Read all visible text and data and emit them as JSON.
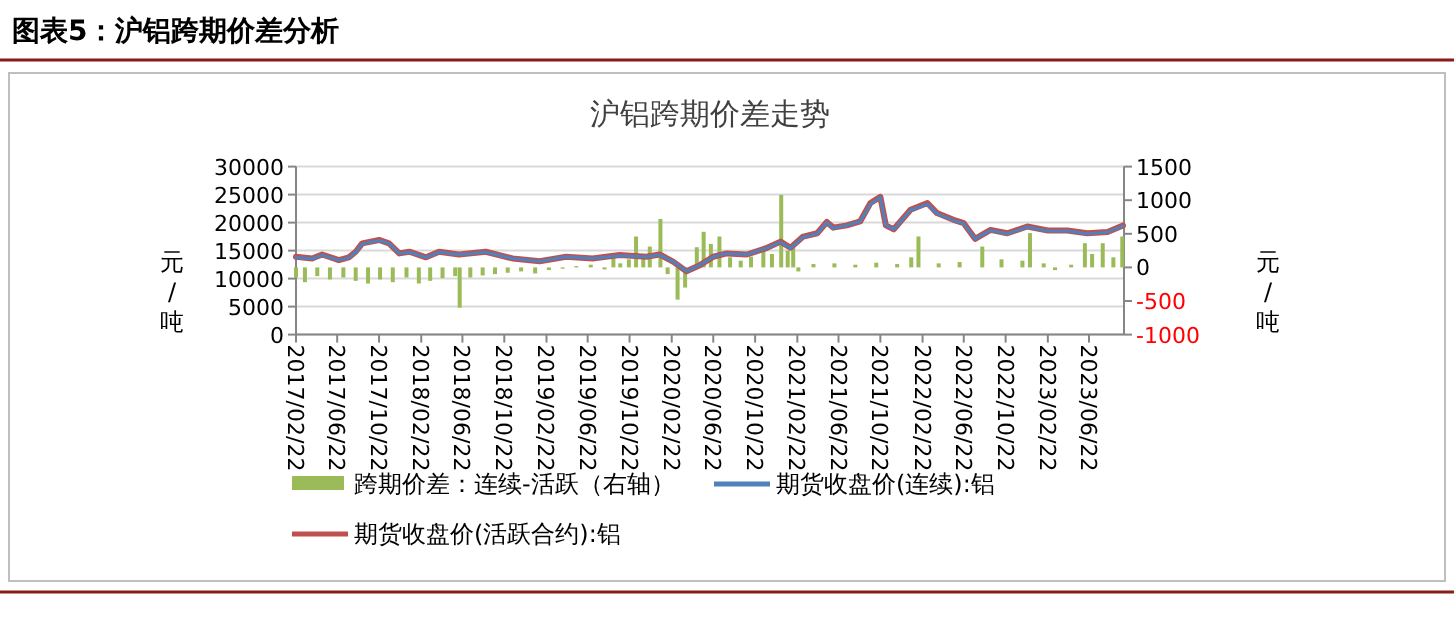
{
  "chart_data": {
    "type": "line",
    "title": "沪铝跨期价差走势",
    "annotations": [
      "图表5：沪铝跨期价差分析"
    ],
    "ylabel": "元/吨",
    "y2label": "元/吨",
    "xlim": [
      "2017-02-22",
      "2023-10-02"
    ],
    "xticks": [
      {
        "value": "2017-02-22",
        "label": "2017/02/22"
      },
      {
        "value": "2017-06-22",
        "label": "2017/06/22"
      },
      {
        "value": "2017-10-22",
        "label": "2017/10/22"
      },
      {
        "value": "2018-02-22",
        "label": "2018/02/22"
      },
      {
        "value": "2018-06-22",
        "label": "2018/06/22"
      },
      {
        "value": "2018-10-22",
        "label": "2018/10/22"
      },
      {
        "value": "2019-02-22",
        "label": "2019/02/22"
      },
      {
        "value": "2019-06-22",
        "label": "2019/06/22"
      },
      {
        "value": "2019-10-22",
        "label": "2019/10/22"
      },
      {
        "value": "2020-02-22",
        "label": "2020/02/22"
      },
      {
        "value": "2020-06-22",
        "label": "2020/06/22"
      },
      {
        "value": "2020-10-22",
        "label": "2020/10/22"
      },
      {
        "value": "2021-02-22",
        "label": "2021/02/22"
      },
      {
        "value": "2021-06-22",
        "label": "2021/06/22"
      },
      {
        "value": "2021-10-22",
        "label": "2021/10/22"
      },
      {
        "value": "2022-02-22",
        "label": "2022/02/22"
      },
      {
        "value": "2022-06-22",
        "label": "2022/06/22"
      },
      {
        "value": "2022-10-22",
        "label": "2022/10/22"
      },
      {
        "value": "2023-02-22",
        "label": "2023/02/22"
      },
      {
        "value": "2023-06-22",
        "label": "2023/06/22"
      }
    ],
    "ylim": [
      0,
      30000
    ],
    "yticks": [
      0,
      5000,
      10000,
      15000,
      20000,
      25000,
      30000
    ],
    "y2lim": [
      -1000,
      1500
    ],
    "y2ticks": [
      -1000,
      -500,
      0,
      500,
      1000,
      1500
    ],
    "grid": "y",
    "legend": "bottom",
    "series": [
      {
        "name": "跨期价差：连续-活跃（右轴）",
        "type": "bar",
        "axis": "y2",
        "color": "#9bbb59",
        "x": [
          "2017-02-22",
          "2017-03-20",
          "2017-04-25",
          "2017-06-01",
          "2017-07-10",
          "2017-08-15",
          "2017-09-20",
          "2017-10-25",
          "2017-12-01",
          "2018-01-10",
          "2018-02-15",
          "2018-03-20",
          "2018-04-25",
          "2018-06-01",
          "2018-06-14",
          "2018-07-15",
          "2018-08-20",
          "2018-09-25",
          "2018-11-01",
          "2018-12-10",
          "2019-01-20",
          "2019-03-01",
          "2019-04-10",
          "2019-05-20",
          "2019-07-01",
          "2019-08-10",
          "2019-09-05",
          "2019-09-25",
          "2019-10-20",
          "2019-11-10",
          "2019-12-01",
          "2019-12-20",
          "2020-01-20",
          "2020-02-10",
          "2020-03-10",
          "2020-04-01",
          "2020-05-05",
          "2020-05-25",
          "2020-06-15",
          "2020-07-10",
          "2020-08-10",
          "2020-09-10",
          "2020-10-10",
          "2020-11-15",
          "2020-12-10",
          "2021-01-06",
          "2021-01-25",
          "2021-02-10",
          "2021-02-25",
          "2021-04-10",
          "2021-06-10",
          "2021-08-10",
          "2021-10-10",
          "2021-12-10",
          "2022-01-20",
          "2022-02-10",
          "2022-04-10",
          "2022-06-10",
          "2022-08-15",
          "2022-10-10",
          "2022-12-10",
          "2023-01-01",
          "2023-02-10",
          "2023-03-15",
          "2023-05-01",
          "2023-06-10",
          "2023-07-01",
          "2023-08-01",
          "2023-09-01",
          "2023-09-27"
        ],
        "values": [
          -150,
          -220,
          -130,
          -180,
          -150,
          -200,
          -240,
          -180,
          -220,
          -150,
          -240,
          -200,
          -160,
          -130,
          -600,
          -150,
          -120,
          -100,
          -80,
          -60,
          -90,
          -40,
          -20,
          20,
          40,
          -30,
          150,
          60,
          120,
          460,
          200,
          310,
          720,
          -100,
          -480,
          -300,
          300,
          530,
          350,
          460,
          150,
          100,
          160,
          250,
          200,
          1080,
          250,
          300,
          -60,
          50,
          60,
          40,
          70,
          50,
          150,
          460,
          60,
          80,
          310,
          120,
          100,
          510,
          60,
          -40,
          40,
          360,
          200,
          360,
          150,
          460
        ]
      },
      {
        "name": "期货收盘价(连续):铝",
        "color": "#4f81bd",
        "x": [
          "2017-02-22",
          "2017-04-10",
          "2017-05-09",
          "2017-06-27",
          "2017-07-26",
          "2017-08-15",
          "2017-09-03",
          "2017-10-22",
          "2017-11-20",
          "2017-12-20",
          "2018-01-18",
          "2018-03-08",
          "2018-04-15",
          "2018-06-12",
          "2018-08-29",
          "2018-11-15",
          "2019-02-02",
          "2019-04-20",
          "2019-07-06",
          "2019-09-23",
          "2019-12-10",
          "2020-01-18",
          "2020-02-27",
          "2020-04-05",
          "2020-05-14",
          "2020-06-22",
          "2020-07-31",
          "2020-09-28",
          "2020-11-26",
          "2021-01-04",
          "2021-02-02",
          "2021-03-11",
          "2021-04-21",
          "2021-05-19",
          "2021-06-07",
          "2021-07-16",
          "2021-08-24",
          "2021-09-23",
          "2021-10-22",
          "2021-11-07",
          "2021-11-30",
          "2022-01-18",
          "2022-03-08",
          "2022-04-05",
          "2022-05-23",
          "2022-06-22",
          "2022-07-25",
          "2022-09-08",
          "2022-10-27",
          "2022-12-24",
          "2023-02-22",
          "2023-04-20",
          "2023-06-17",
          "2023-08-15",
          "2023-09-29"
        ],
        "values": [
          13800,
          13500,
          14200,
          13300,
          13700,
          14700,
          16200,
          16800,
          16300,
          14500,
          14700,
          13800,
          14700,
          14300,
          14700,
          13600,
          13100,
          13900,
          13600,
          14100,
          13900,
          14200,
          13000,
          11300,
          12400,
          13900,
          14500,
          14300,
          15500,
          16500,
          15400,
          17400,
          18000,
          20000,
          19000,
          19500,
          20200,
          23300,
          24500,
          19500,
          18800,
          22200,
          23300,
          21600,
          20400,
          19800,
          17100,
          18600,
          18000,
          19200,
          18500,
          18500,
          18000,
          18300,
          19400
        ]
      },
      {
        "name": "期货收盘价(活跃合约):铝",
        "color": "#c0504d",
        "x": [
          "2017-02-22",
          "2017-04-10",
          "2017-05-09",
          "2017-06-27",
          "2017-07-26",
          "2017-08-15",
          "2017-09-03",
          "2017-10-22",
          "2017-11-20",
          "2017-12-20",
          "2018-01-18",
          "2018-03-08",
          "2018-04-15",
          "2018-06-12",
          "2018-08-29",
          "2018-11-15",
          "2019-02-02",
          "2019-04-20",
          "2019-07-06",
          "2019-09-23",
          "2019-12-10",
          "2020-01-18",
          "2020-02-27",
          "2020-04-05",
          "2020-05-14",
          "2020-06-22",
          "2020-07-31",
          "2020-09-28",
          "2020-11-26",
          "2021-01-04",
          "2021-02-02",
          "2021-03-11",
          "2021-04-21",
          "2021-05-19",
          "2021-06-07",
          "2021-07-16",
          "2021-08-24",
          "2021-09-23",
          "2021-10-22",
          "2021-11-07",
          "2021-11-30",
          "2022-01-18",
          "2022-03-08",
          "2022-04-05",
          "2022-05-23",
          "2022-06-22",
          "2022-07-25",
          "2022-09-08",
          "2022-10-27",
          "2022-12-24",
          "2023-02-22",
          "2023-04-20",
          "2023-06-17",
          "2023-08-15",
          "2023-09-29"
        ],
        "values": [
          13900,
          13600,
          14300,
          13300,
          13800,
          14800,
          16300,
          16900,
          16300,
          14500,
          14800,
          13800,
          14800,
          14300,
          14800,
          13600,
          13100,
          13900,
          13600,
          14200,
          13900,
          14300,
          13000,
          11300,
          12400,
          13900,
          14500,
          14300,
          15500,
          16600,
          15500,
          17500,
          18100,
          20100,
          19100,
          19500,
          20200,
          23500,
          24600,
          19500,
          18800,
          22300,
          23500,
          21700,
          20500,
          19900,
          17100,
          18700,
          18100,
          19300,
          18600,
          18600,
          18100,
          18300,
          19500
        ]
      }
    ]
  }
}
